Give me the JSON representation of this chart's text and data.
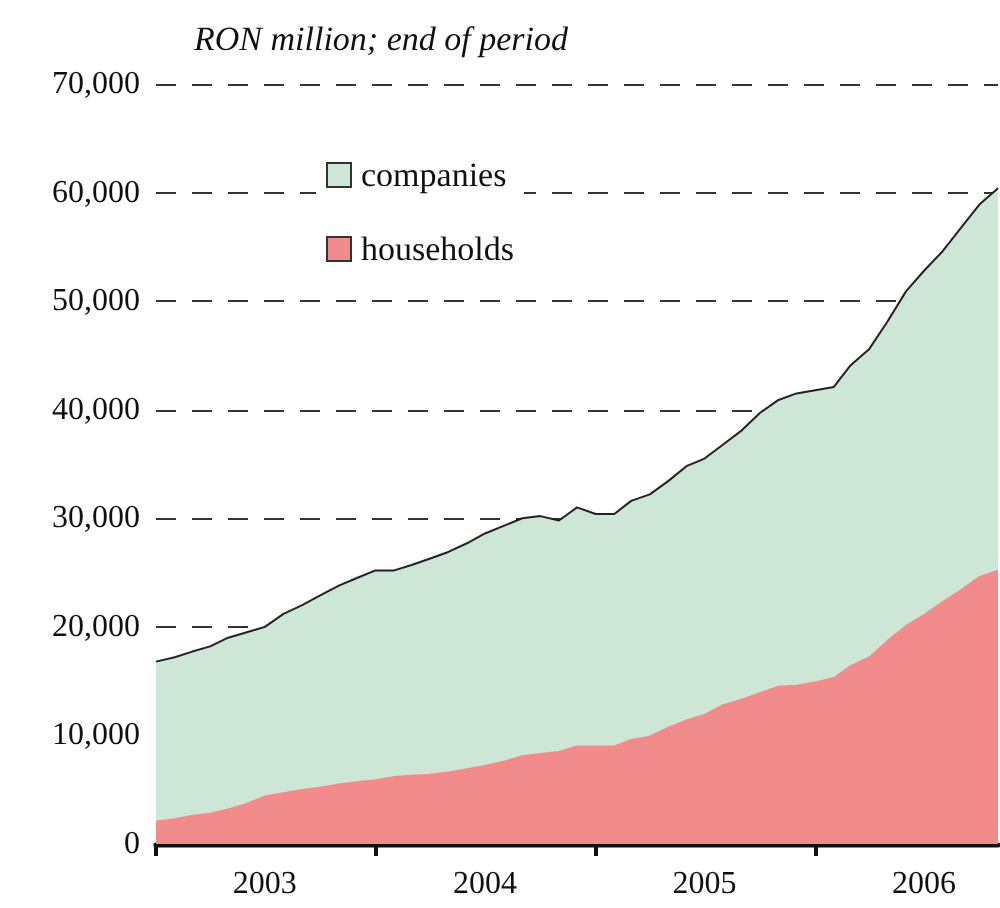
{
  "chart_data": {
    "type": "area",
    "stacked": true,
    "subtitle": "RON million; end of period",
    "x": [
      "2003-01",
      "2003-02",
      "2003-03",
      "2003-04",
      "2003-05",
      "2003-06",
      "2003-07",
      "2003-08",
      "2003-09",
      "2003-10",
      "2003-11",
      "2003-12",
      "2004-01",
      "2004-02",
      "2004-03",
      "2004-04",
      "2004-05",
      "2004-06",
      "2004-07",
      "2004-08",
      "2004-09",
      "2004-10",
      "2004-11",
      "2004-12",
      "2005-01",
      "2005-02",
      "2005-03",
      "2005-04",
      "2005-05",
      "2005-06",
      "2005-07",
      "2005-08",
      "2005-09",
      "2005-10",
      "2005-11",
      "2005-12",
      "2006-01",
      "2006-02",
      "2006-03",
      "2006-04",
      "2006-05",
      "2006-06",
      "2006-07",
      "2006-08",
      "2006-09",
      "2006-10",
      "2006-11"
    ],
    "series": [
      {
        "name": "households",
        "color": "#f28b8b",
        "values": [
          2100,
          2300,
          2600,
          2800,
          3200,
          3700,
          4400,
          4700,
          5000,
          5200,
          5500,
          5700,
          5900,
          6200,
          6300,
          6400,
          6600,
          6900,
          7200,
          7600,
          8100,
          8300,
          8500,
          9000,
          9000,
          9000,
          9600,
          9900,
          10700,
          11400,
          11900,
          12800,
          13300,
          13900,
          14500,
          14600,
          14900,
          15300,
          16400,
          17200,
          18700,
          20100,
          21100,
          22300,
          23400,
          24600,
          25200
        ]
      },
      {
        "name": "companies",
        "color": "#cde6d5",
        "values": [
          14700,
          14900,
          15100,
          15400,
          15800,
          15800,
          15600,
          16500,
          17000,
          17700,
          18300,
          18800,
          19300,
          19000,
          19400,
          19900,
          20300,
          20800,
          21400,
          21700,
          21900,
          21900,
          21300,
          22000,
          21400,
          21400,
          22000,
          22300,
          22700,
          23400,
          23600,
          24000,
          24800,
          25800,
          26400,
          26900,
          26900,
          26800,
          27700,
          28400,
          29400,
          30800,
          31700,
          32300,
          33400,
          34300,
          35200
        ]
      }
    ],
    "xlim": [
      "2003-01",
      "2006-11"
    ],
    "xticks": [
      {
        "value": "2003-01",
        "label": null
      },
      {
        "value": "2003-07",
        "label": "2003"
      },
      {
        "value": "2004-01",
        "label": null
      },
      {
        "value": "2004-07",
        "label": "2004"
      },
      {
        "value": "2005-01",
        "label": null
      },
      {
        "value": "2005-07",
        "label": "2005"
      },
      {
        "value": "2006-01",
        "label": null
      },
      {
        "value": "2006-07",
        "label": "2006"
      }
    ],
    "ylim": [
      0,
      70000
    ],
    "yticks": [
      0,
      {
        "value": 10000,
        "label": "10,000"
      },
      {
        "value": 20000,
        "label": "20,000"
      },
      {
        "value": 30000,
        "label": "30,000"
      },
      {
        "value": 40000,
        "label": "40,000"
      },
      {
        "value": 50000,
        "label": "50,000"
      },
      {
        "value": 60000,
        "label": "60,000"
      },
      {
        "value": 70000,
        "label": "70,000"
      }
    ],
    "grid": "y",
    "legend": "top left"
  }
}
